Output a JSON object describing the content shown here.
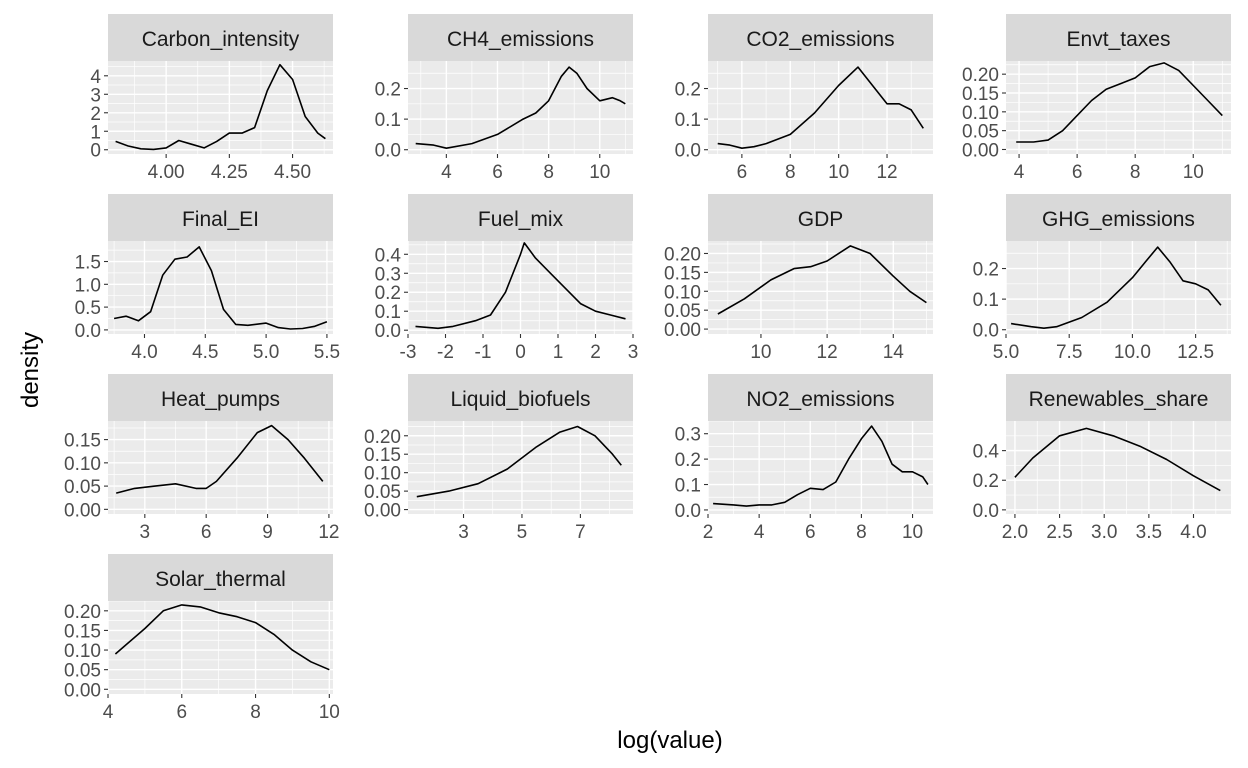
{
  "figure": {
    "xlabel": "log(value)",
    "ylabel": "density"
  },
  "chart_data": [
    {
      "type": "line",
      "title": "Carbon_intensity",
      "x": [
        3.8,
        3.85,
        3.9,
        3.95,
        4.0,
        4.05,
        4.1,
        4.15,
        4.2,
        4.25,
        4.3,
        4.35,
        4.4,
        4.45,
        4.5,
        4.55,
        4.6,
        4.63
      ],
      "y": [
        0.45,
        0.2,
        0.05,
        0.02,
        0.1,
        0.5,
        0.3,
        0.1,
        0.45,
        0.9,
        0.9,
        1.2,
        3.2,
        4.6,
        3.8,
        1.8,
        0.9,
        0.6
      ],
      "xlim": [
        3.77,
        4.66
      ],
      "ylim": [
        -0.23,
        4.8
      ],
      "xticks": [
        4.0,
        4.25,
        4.5
      ],
      "xtick_labels": [
        "4.00",
        "4.25",
        "4.50"
      ],
      "yticks": [
        0,
        1,
        2,
        3,
        4
      ],
      "ytick_labels": [
        "0",
        "1",
        "2",
        "3",
        "4"
      ]
    },
    {
      "type": "line",
      "title": "CH4_emissions",
      "x": [
        2.8,
        3.5,
        4.0,
        5.0,
        6.0,
        7.0,
        7.5,
        8.0,
        8.5,
        8.8,
        9.1,
        9.5,
        10.0,
        10.5,
        10.8,
        11.0
      ],
      "y": [
        0.02,
        0.015,
        0.005,
        0.02,
        0.05,
        0.1,
        0.12,
        0.16,
        0.24,
        0.27,
        0.25,
        0.2,
        0.16,
        0.17,
        0.16,
        0.15
      ],
      "xlim": [
        2.5,
        11.3
      ],
      "ylim": [
        -0.014,
        0.29
      ],
      "xticks": [
        4,
        6,
        8,
        10
      ],
      "xtick_labels": [
        "4",
        "6",
        "8",
        "10"
      ],
      "yticks": [
        0.0,
        0.1,
        0.2
      ],
      "ytick_labels": [
        "0.0",
        "0.1",
        "0.2"
      ]
    },
    {
      "type": "line",
      "title": "CO2_emissions",
      "x": [
        5.0,
        5.5,
        6.0,
        6.5,
        7.0,
        8.0,
        9.0,
        10.0,
        10.8,
        11.5,
        12.0,
        12.5,
        13.0,
        13.5
      ],
      "y": [
        0.02,
        0.015,
        0.005,
        0.01,
        0.02,
        0.05,
        0.12,
        0.21,
        0.27,
        0.2,
        0.15,
        0.15,
        0.13,
        0.07
      ],
      "xlim": [
        4.6,
        13.9
      ],
      "ylim": [
        -0.014,
        0.29
      ],
      "xticks": [
        6,
        8,
        10,
        12
      ],
      "xtick_labels": [
        "6",
        "8",
        "10",
        "12"
      ],
      "yticks": [
        0.0,
        0.1,
        0.2
      ],
      "ytick_labels": [
        "0.0",
        "0.1",
        "0.2"
      ]
    },
    {
      "type": "line",
      "title": "Envt_taxes",
      "x": [
        3.9,
        4.5,
        5.0,
        5.5,
        6.0,
        6.5,
        7.0,
        7.5,
        8.0,
        8.5,
        9.0,
        9.5,
        10.0,
        10.5,
        11.0
      ],
      "y": [
        0.02,
        0.02,
        0.025,
        0.05,
        0.09,
        0.13,
        0.16,
        0.175,
        0.19,
        0.22,
        0.23,
        0.21,
        0.17,
        0.13,
        0.09
      ],
      "xlim": [
        3.55,
        11.3
      ],
      "ylim": [
        -0.012,
        0.235
      ],
      "xticks": [
        4,
        6,
        8,
        10
      ],
      "xtick_labels": [
        "4",
        "6",
        "8",
        "10"
      ],
      "yticks": [
        0.0,
        0.05,
        0.1,
        0.15,
        0.2
      ],
      "ytick_labels": [
        "0.00",
        "0.05",
        "0.10",
        "0.15",
        "0.20"
      ]
    },
    {
      "type": "line",
      "title": "Final_EI",
      "x": [
        3.75,
        3.85,
        3.95,
        4.05,
        4.15,
        4.25,
        4.35,
        4.45,
        4.55,
        4.65,
        4.75,
        4.85,
        5.0,
        5.1,
        5.2,
        5.3,
        5.4,
        5.5
      ],
      "y": [
        0.25,
        0.3,
        0.2,
        0.4,
        1.2,
        1.55,
        1.6,
        1.82,
        1.3,
        0.45,
        0.12,
        0.1,
        0.15,
        0.05,
        0.02,
        0.03,
        0.08,
        0.18
      ],
      "xlim": [
        3.7,
        5.55
      ],
      "ylim": [
        -0.09,
        1.95
      ],
      "xticks": [
        4.0,
        4.5,
        5.0,
        5.5
      ],
      "xtick_labels": [
        "4.0",
        "4.5",
        "5.0",
        "5.5"
      ],
      "yticks": [
        0.0,
        0.5,
        1.0,
        1.5
      ],
      "ytick_labels": [
        "0.0",
        "0.5",
        "1.0",
        "1.5"
      ]
    },
    {
      "type": "line",
      "title": "Fuel_mix",
      "x": [
        -2.8,
        -2.2,
        -1.8,
        -1.2,
        -0.8,
        -0.4,
        0.0,
        0.1,
        0.4,
        0.8,
        1.2,
        1.6,
        2.0,
        2.4,
        2.8
      ],
      "y": [
        0.02,
        0.01,
        0.02,
        0.05,
        0.08,
        0.2,
        0.4,
        0.46,
        0.38,
        0.3,
        0.22,
        0.14,
        0.1,
        0.08,
        0.06
      ],
      "xlim": [
        -3.0,
        3.0
      ],
      "ylim": [
        -0.02,
        0.47
      ],
      "xticks": [
        -3,
        -2,
        -1,
        0,
        1,
        2,
        3
      ],
      "xtick_labels": [
        "-3",
        "-2",
        "-1",
        "0",
        "1",
        "2",
        "3"
      ],
      "yticks": [
        0.0,
        0.1,
        0.2,
        0.3,
        0.4
      ],
      "ytick_labels": [
        "0.0",
        "0.1",
        "0.2",
        "0.3",
        "0.4"
      ]
    },
    {
      "type": "line",
      "title": "GDP",
      "x": [
        8.7,
        9.5,
        10.3,
        11.0,
        11.5,
        12.0,
        12.7,
        13.3,
        14.0,
        14.5,
        15.0
      ],
      "y": [
        0.04,
        0.08,
        0.13,
        0.16,
        0.165,
        0.18,
        0.22,
        0.2,
        0.14,
        0.1,
        0.07
      ],
      "xlim": [
        8.4,
        15.2
      ],
      "ylim": [
        -0.013,
        0.233
      ],
      "xticks": [
        10,
        12,
        14
      ],
      "xtick_labels": [
        "10",
        "12",
        "14"
      ],
      "yticks": [
        0.0,
        0.05,
        0.1,
        0.15,
        0.2
      ],
      "ytick_labels": [
        "0.00",
        "0.05",
        "0.10",
        "0.15",
        "0.20"
      ]
    },
    {
      "type": "line",
      "title": "GHG_emissions",
      "x": [
        5.2,
        6.0,
        6.5,
        7.0,
        8.0,
        9.0,
        10.0,
        10.5,
        11.0,
        11.5,
        12.0,
        12.5,
        13.0,
        13.5
      ],
      "y": [
        0.02,
        0.01,
        0.005,
        0.01,
        0.04,
        0.09,
        0.17,
        0.22,
        0.27,
        0.22,
        0.16,
        0.15,
        0.13,
        0.08
      ],
      "xlim": [
        5.0,
        13.9
      ],
      "ylim": [
        -0.014,
        0.29
      ],
      "xticks": [
        5.0,
        7.5,
        10.0,
        12.5
      ],
      "xtick_labels": [
        "5.0",
        "7.5",
        "10.0",
        "12.5"
      ],
      "yticks": [
        0.0,
        0.1,
        0.2
      ],
      "ytick_labels": [
        "0.0",
        "0.1",
        "0.2"
      ]
    },
    {
      "type": "line",
      "title": "Heat_pumps",
      "x": [
        1.6,
        2.5,
        3.5,
        4.5,
        5.5,
        6.0,
        6.5,
        7.5,
        8.5,
        9.2,
        10.0,
        10.8,
        11.7
      ],
      "y": [
        0.035,
        0.045,
        0.05,
        0.055,
        0.045,
        0.045,
        0.06,
        0.11,
        0.165,
        0.18,
        0.15,
        0.11,
        0.06
      ],
      "xlim": [
        1.2,
        12.2
      ],
      "ylim": [
        -0.01,
        0.19
      ],
      "xticks": [
        3,
        6,
        9,
        12
      ],
      "xtick_labels": [
        "3",
        "6",
        "9",
        "12"
      ],
      "yticks": [
        0.0,
        0.05,
        0.1,
        0.15
      ],
      "ytick_labels": [
        "0.00",
        "0.05",
        "0.10",
        "0.15"
      ]
    },
    {
      "type": "line",
      "title": "Liquid_biofuels",
      "x": [
        1.4,
        2.5,
        3.5,
        4.5,
        5.5,
        6.3,
        6.9,
        7.5,
        8.1,
        8.4
      ],
      "y": [
        0.035,
        0.05,
        0.07,
        0.11,
        0.17,
        0.21,
        0.225,
        0.2,
        0.15,
        0.12
      ],
      "xlim": [
        1.1,
        8.8
      ],
      "ylim": [
        -0.012,
        0.24
      ],
      "xticks": [
        3,
        5,
        7
      ],
      "xtick_labels": [
        "3",
        "5",
        "7"
      ],
      "yticks": [
        0.0,
        0.05,
        0.1,
        0.15,
        0.2
      ],
      "ytick_labels": [
        "0.00",
        "0.05",
        "0.10",
        "0.15",
        "0.20"
      ]
    },
    {
      "type": "line",
      "title": "NO2_emissions",
      "x": [
        2.2,
        3.0,
        3.5,
        4.0,
        4.5,
        5.0,
        5.5,
        6.0,
        6.5,
        7.0,
        7.5,
        8.0,
        8.4,
        8.8,
        9.2,
        9.6,
        10.0,
        10.4,
        10.6
      ],
      "y": [
        0.025,
        0.02,
        0.015,
        0.02,
        0.02,
        0.03,
        0.06,
        0.085,
        0.08,
        0.11,
        0.2,
        0.28,
        0.33,
        0.27,
        0.18,
        0.15,
        0.15,
        0.13,
        0.1
      ],
      "xlim": [
        2.0,
        10.8
      ],
      "ylim": [
        -0.016,
        0.35
      ],
      "xticks": [
        2,
        4,
        6,
        8,
        10
      ],
      "xtick_labels": [
        "2",
        "4",
        "6",
        "8",
        "10"
      ],
      "yticks": [
        0.0,
        0.1,
        0.2,
        0.3
      ],
      "ytick_labels": [
        "0.0",
        "0.1",
        "0.2",
        "0.3"
      ]
    },
    {
      "type": "line",
      "title": "Renewables_share",
      "x": [
        2.0,
        2.2,
        2.5,
        2.8,
        3.1,
        3.4,
        3.7,
        4.0,
        4.3
      ],
      "y": [
        0.22,
        0.35,
        0.5,
        0.55,
        0.5,
        0.43,
        0.34,
        0.23,
        0.13
      ],
      "xlim": [
        1.9,
        4.42
      ],
      "ylim": [
        -0.028,
        0.6
      ],
      "xticks": [
        2.0,
        2.5,
        3.0,
        3.5,
        4.0
      ],
      "xtick_labels": [
        "2.0",
        "2.5",
        "3.0",
        "3.5",
        "4.0"
      ],
      "yticks": [
        0.0,
        0.2,
        0.4
      ],
      "ytick_labels": [
        "0.0",
        "0.2",
        "0.4"
      ]
    },
    {
      "type": "line",
      "title": "Solar_thermal",
      "x": [
        4.2,
        5.0,
        5.5,
        6.0,
        6.5,
        7.0,
        7.5,
        8.0,
        8.5,
        9.0,
        9.5,
        10.0
      ],
      "y": [
        0.09,
        0.155,
        0.2,
        0.215,
        0.21,
        0.195,
        0.185,
        0.17,
        0.14,
        0.1,
        0.07,
        0.05
      ],
      "xlim": [
        4.0,
        10.1
      ],
      "ylim": [
        -0.012,
        0.225
      ],
      "xticks": [
        4,
        6,
        8,
        10
      ],
      "xtick_labels": [
        "4",
        "6",
        "8",
        "10"
      ],
      "yticks": [
        0.0,
        0.05,
        0.1,
        0.15,
        0.2
      ],
      "ytick_labels": [
        "0.00",
        "0.05",
        "0.10",
        "0.15",
        "0.20"
      ]
    }
  ]
}
